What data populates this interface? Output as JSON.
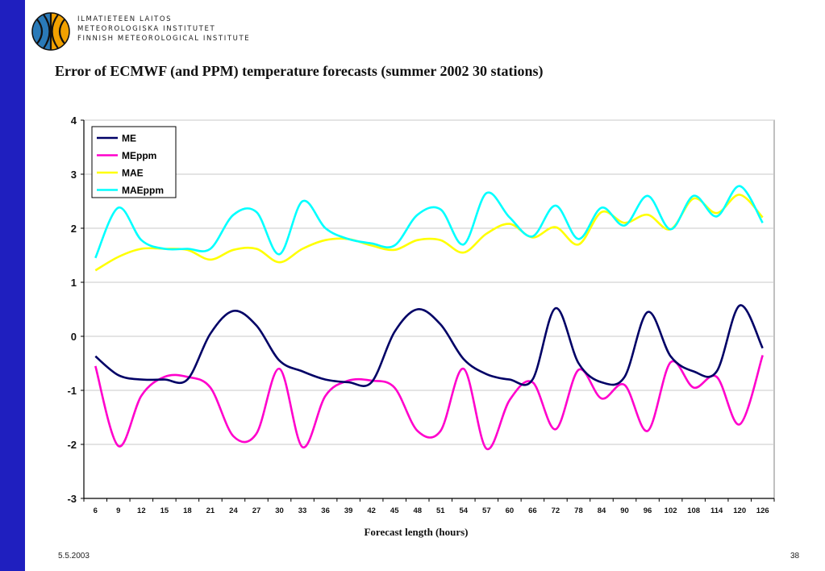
{
  "header": {
    "org_lines": [
      "ILMATIETEEN LAITOS",
      "METEOROLOGISKA INSTITUTET",
      "FINNISH METEOROLOGICAL INSTITUTE"
    ]
  },
  "footer": {
    "date": "5.5.2003",
    "page": "38"
  },
  "chart_data": {
    "type": "line",
    "title": "Error of ECMWF (and PPM) temperature forecasts (summer 2002 30 stations)",
    "xlabel": "Forecast length (hours)",
    "ylabel": "",
    "ylim": [
      -3,
      4
    ],
    "yticks": [
      -3,
      -2,
      -1,
      0,
      1,
      2,
      3,
      4
    ],
    "categories": [
      "6",
      "9",
      "12",
      "15",
      "18",
      "21",
      "24",
      "27",
      "30",
      "33",
      "36",
      "39",
      "42",
      "45",
      "48",
      "51",
      "54",
      "57",
      "60",
      "66",
      "72",
      "78",
      "84",
      "90",
      "96",
      "102",
      "108",
      "114",
      "120",
      "126"
    ],
    "grid": "horizontal",
    "legend_position": "top-left",
    "series": [
      {
        "name": "ME",
        "color": "#000066",
        "values": [
          -0.37,
          -0.72,
          -0.8,
          -0.8,
          -0.8,
          0.05,
          0.47,
          0.2,
          -0.45,
          -0.65,
          -0.8,
          -0.85,
          -0.85,
          0.08,
          0.5,
          0.22,
          -0.42,
          -0.7,
          -0.8,
          -0.8,
          0.52,
          -0.5,
          -0.85,
          -0.75,
          0.45,
          -0.37,
          -0.65,
          -0.65,
          0.57,
          -0.22
        ]
      },
      {
        "name": "MEppm",
        "color": "#ff00cc",
        "values": [
          -0.55,
          -2.03,
          -1.1,
          -0.75,
          -0.75,
          -0.95,
          -1.85,
          -1.8,
          -0.6,
          -2.05,
          -1.1,
          -0.82,
          -0.82,
          -0.95,
          -1.75,
          -1.75,
          -0.6,
          -2.08,
          -1.18,
          -0.85,
          -1.72,
          -0.62,
          -1.15,
          -0.9,
          -1.75,
          -0.48,
          -0.95,
          -0.75,
          -1.63,
          -0.35
        ]
      },
      {
        "name": "MAE",
        "color": "#ffff00",
        "values": [
          1.22,
          1.47,
          1.62,
          1.62,
          1.6,
          1.42,
          1.6,
          1.62,
          1.37,
          1.62,
          1.78,
          1.8,
          1.68,
          1.6,
          1.78,
          1.78,
          1.55,
          1.9,
          2.08,
          1.83,
          2.02,
          1.7,
          2.3,
          2.1,
          2.25,
          1.98,
          2.55,
          2.28,
          2.62,
          2.2
        ]
      },
      {
        "name": "MAEppm",
        "color": "#00ffff",
        "values": [
          1.45,
          2.38,
          1.78,
          1.62,
          1.62,
          1.62,
          2.25,
          2.3,
          1.52,
          2.5,
          2.0,
          1.8,
          1.72,
          1.68,
          2.25,
          2.35,
          1.7,
          2.65,
          2.2,
          1.85,
          2.42,
          1.8,
          2.38,
          2.05,
          2.6,
          1.98,
          2.6,
          2.22,
          2.78,
          2.1
        ]
      }
    ]
  }
}
